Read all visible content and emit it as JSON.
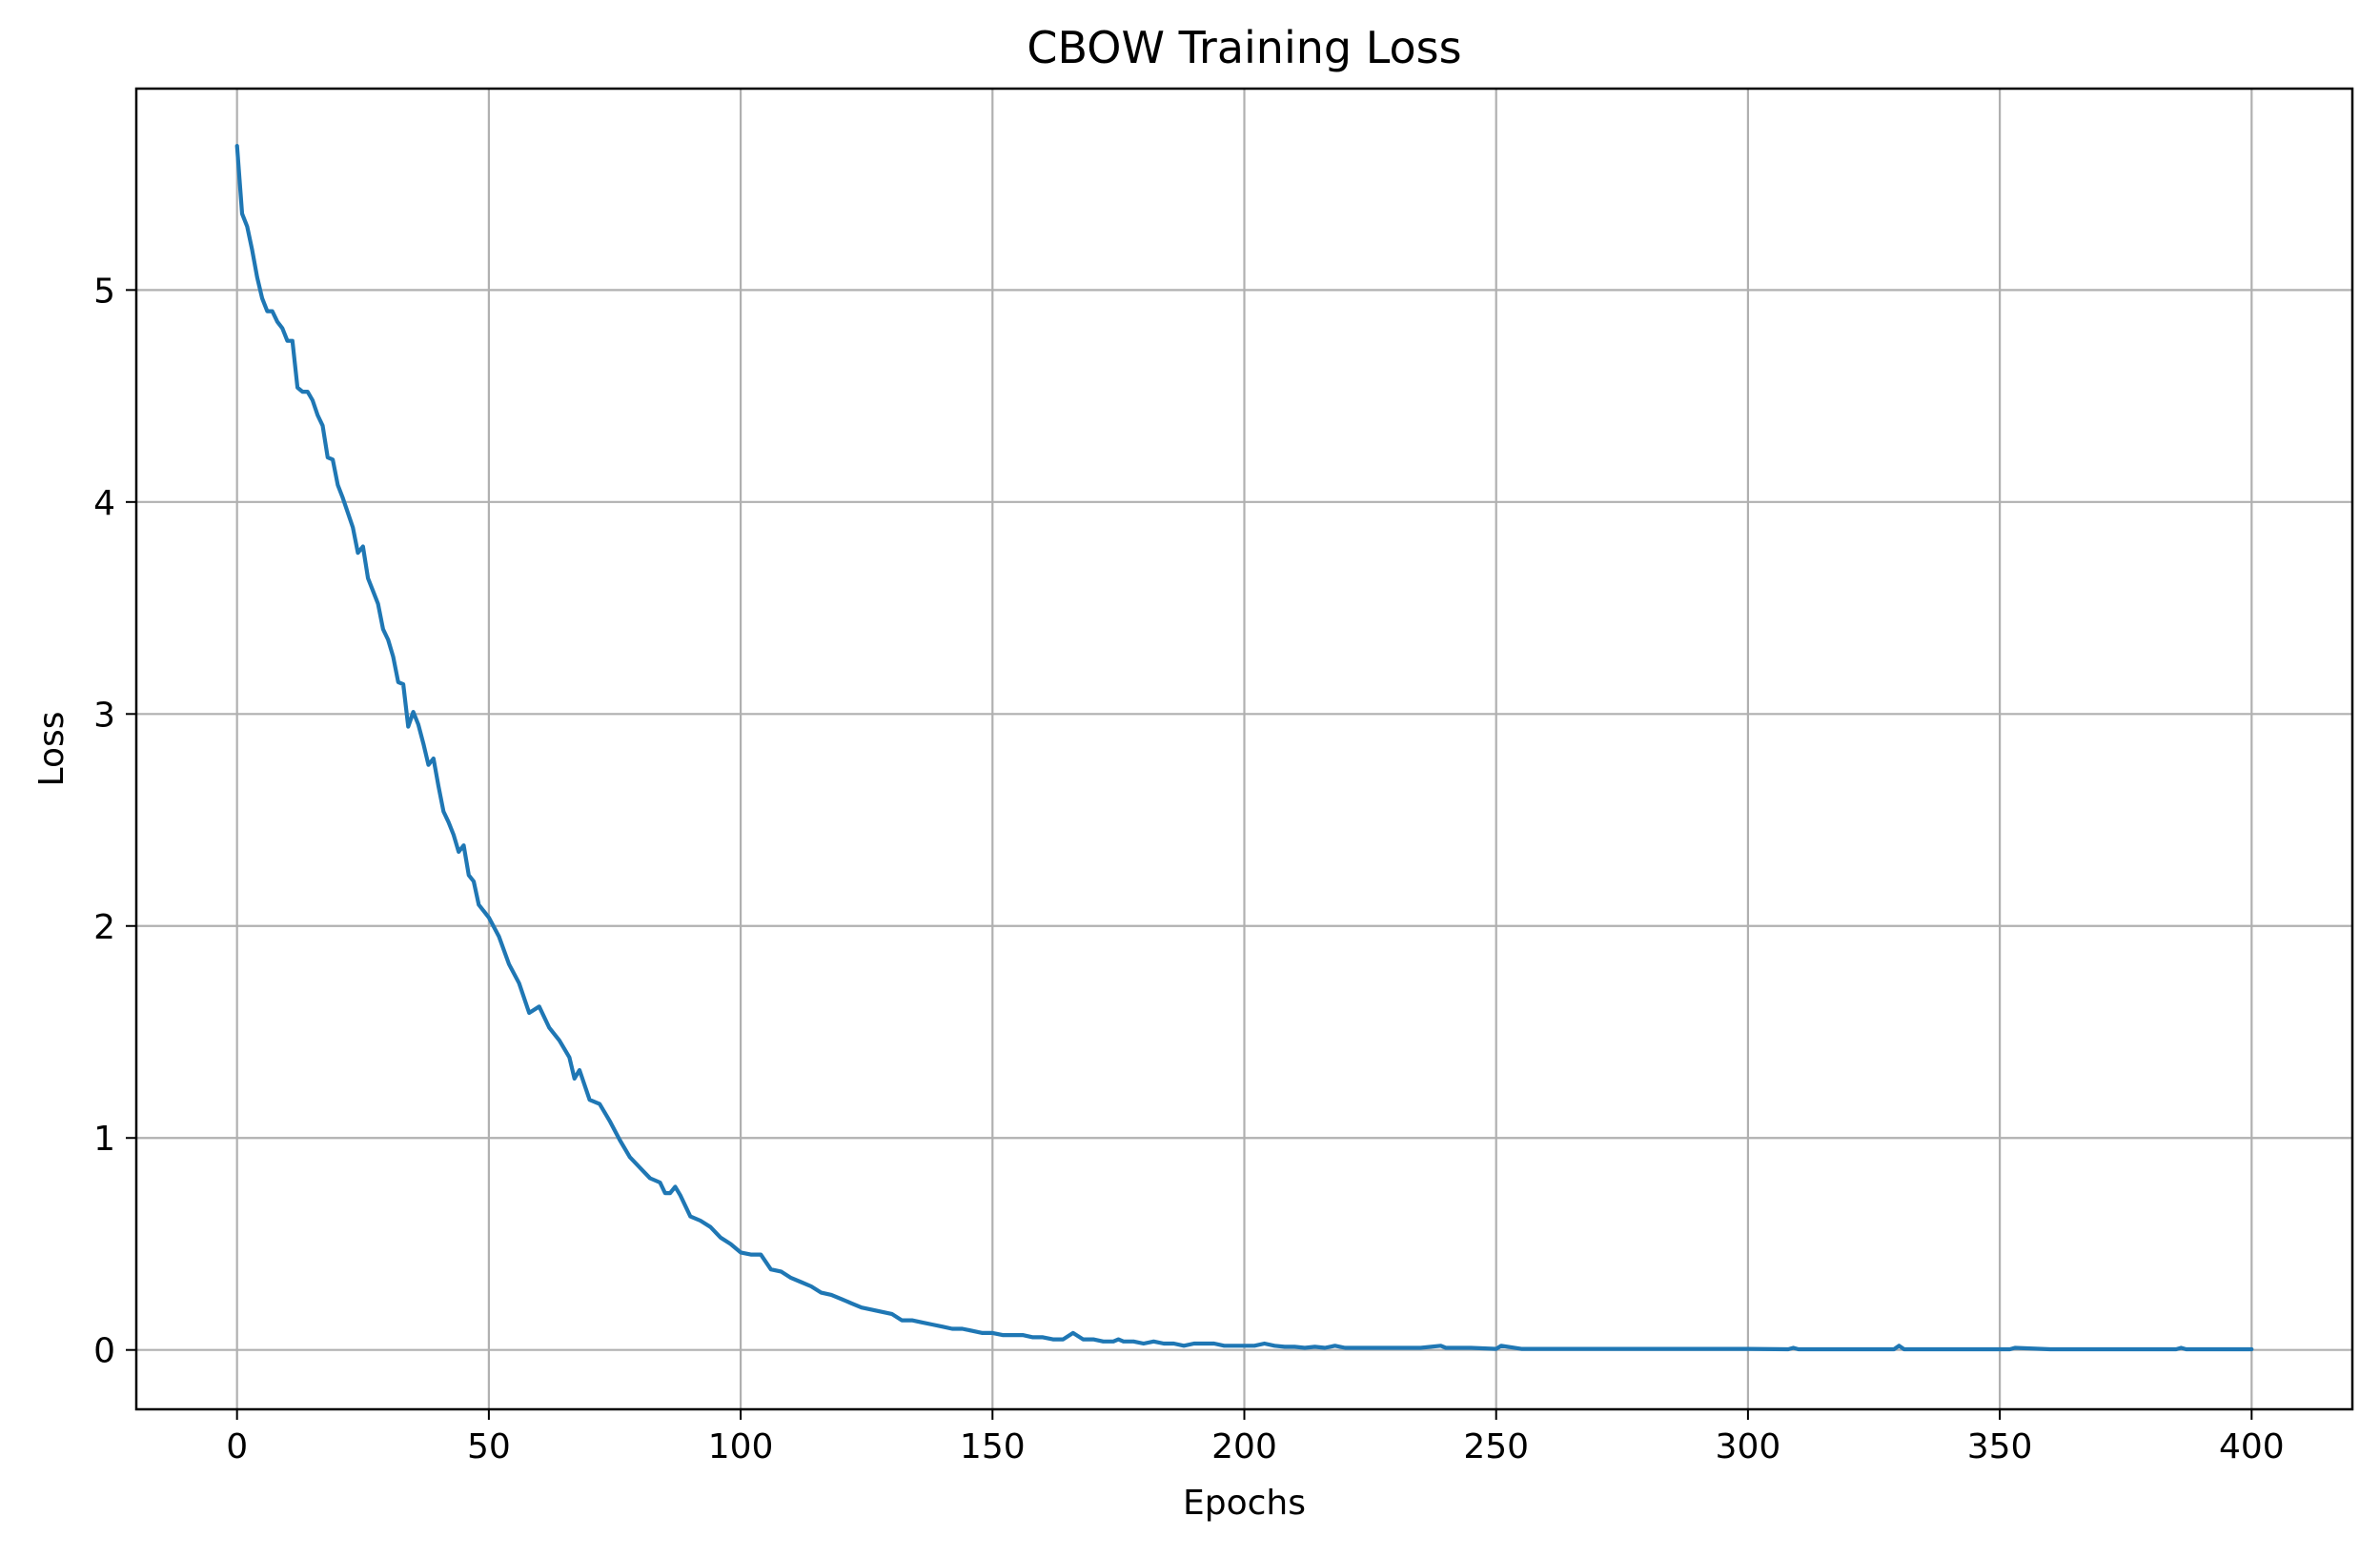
{
  "chart_data": {
    "type": "line",
    "title": "CBOW Training Loss",
    "xlabel": "Epochs",
    "ylabel": "Loss",
    "xlim": [
      -20,
      420
    ],
    "ylim": [
      -0.28,
      5.95
    ],
    "xticks": [
      0,
      50,
      100,
      150,
      200,
      250,
      300,
      350,
      400
    ],
    "xtick_labels": [
      "0",
      "50",
      "100",
      "150",
      "200",
      "250",
      "300",
      "350",
      "400"
    ],
    "yticks": [
      0,
      1,
      2,
      3,
      4,
      5
    ],
    "ytick_labels": [
      "0",
      "1",
      "2",
      "3",
      "4",
      "5"
    ],
    "grid": true,
    "series_color": "#1f77b4",
    "series": [
      {
        "x": [
          0,
          1,
          2,
          3,
          4,
          5,
          6,
          7,
          8,
          9,
          10,
          11,
          12,
          13,
          14,
          15,
          16,
          17,
          18,
          19,
          20,
          21,
          22,
          23,
          24,
          25,
          26,
          27,
          28,
          29,
          30,
          31,
          32,
          33,
          34,
          35,
          36,
          37,
          38,
          39,
          40,
          41,
          42,
          43,
          44,
          45,
          46,
          47,
          48,
          49,
          50,
          52,
          54,
          56,
          58,
          60,
          62,
          64,
          66,
          67,
          68,
          70,
          72,
          74,
          76,
          78,
          80,
          82,
          84,
          85,
          86,
          87,
          88,
          90,
          92,
          94,
          96,
          98,
          100,
          102,
          104,
          106,
          108,
          110,
          112,
          114,
          116,
          118,
          120,
          122,
          124,
          126,
          128,
          130,
          132,
          134,
          136,
          138,
          140,
          142,
          144,
          146,
          148,
          150,
          152,
          154,
          156,
          158,
          160,
          162,
          164,
          166,
          168,
          170,
          172,
          174,
          175,
          176,
          178,
          180,
          182,
          184,
          186,
          188,
          190,
          192,
          194,
          196,
          198,
          200,
          202,
          204,
          206,
          208,
          210,
          212,
          214,
          216,
          218,
          220,
          225,
          230,
          235,
          239,
          240,
          245,
          250,
          251,
          255,
          260,
          270,
          280,
          290,
          300,
          308,
          309,
          310,
          320,
          329,
          330,
          331,
          340,
          350,
          352,
          353,
          360,
          370,
          380,
          385,
          386,
          387,
          390,
          400
        ],
        "y": [
          5.68,
          5.36,
          5.3,
          5.19,
          5.06,
          4.96,
          4.9,
          4.9,
          4.85,
          4.82,
          4.76,
          4.76,
          4.54,
          4.52,
          4.52,
          4.48,
          4.41,
          4.36,
          4.21,
          4.2,
          4.08,
          4.02,
          3.95,
          3.88,
          3.76,
          3.79,
          3.64,
          3.58,
          3.52,
          3.4,
          3.35,
          3.27,
          3.15,
          3.14,
          2.94,
          3.01,
          2.95,
          2.86,
          2.76,
          2.79,
          2.66,
          2.54,
          2.49,
          2.43,
          2.35,
          2.38,
          2.24,
          2.21,
          2.1,
          2.07,
          2.04,
          1.95,
          1.82,
          1.73,
          1.59,
          1.62,
          1.52,
          1.46,
          1.38,
          1.28,
          1.32,
          1.18,
          1.16,
          1.08,
          0.99,
          0.91,
          0.86,
          0.81,
          0.79,
          0.74,
          0.74,
          0.77,
          0.73,
          0.63,
          0.61,
          0.58,
          0.53,
          0.5,
          0.46,
          0.45,
          0.45,
          0.38,
          0.37,
          0.34,
          0.32,
          0.3,
          0.27,
          0.26,
          0.24,
          0.22,
          0.2,
          0.19,
          0.18,
          0.17,
          0.14,
          0.14,
          0.13,
          0.12,
          0.11,
          0.1,
          0.1,
          0.09,
          0.08,
          0.08,
          0.07,
          0.07,
          0.07,
          0.06,
          0.06,
          0.05,
          0.05,
          0.08,
          0.05,
          0.05,
          0.04,
          0.04,
          0.05,
          0.04,
          0.04,
          0.03,
          0.04,
          0.03,
          0.03,
          0.02,
          0.03,
          0.03,
          0.03,
          0.02,
          0.02,
          0.02,
          0.02,
          0.03,
          0.02,
          0.015,
          0.015,
          0.01,
          0.015,
          0.01,
          0.02,
          0.01,
          0.01,
          0.01,
          0.01,
          0.02,
          0.01,
          0.01,
          0.005,
          0.02,
          0.005,
          0.005,
          0.005,
          0.005,
          0.005,
          0.005,
          0.003,
          0.01,
          0.003,
          0.003,
          0.003,
          0.02,
          0.003,
          0.003,
          0.003,
          0.003,
          0.01,
          0.003,
          0.003,
          0.003,
          0.003,
          0.01,
          0.003,
          0.003,
          0.003
        ]
      }
    ]
  }
}
